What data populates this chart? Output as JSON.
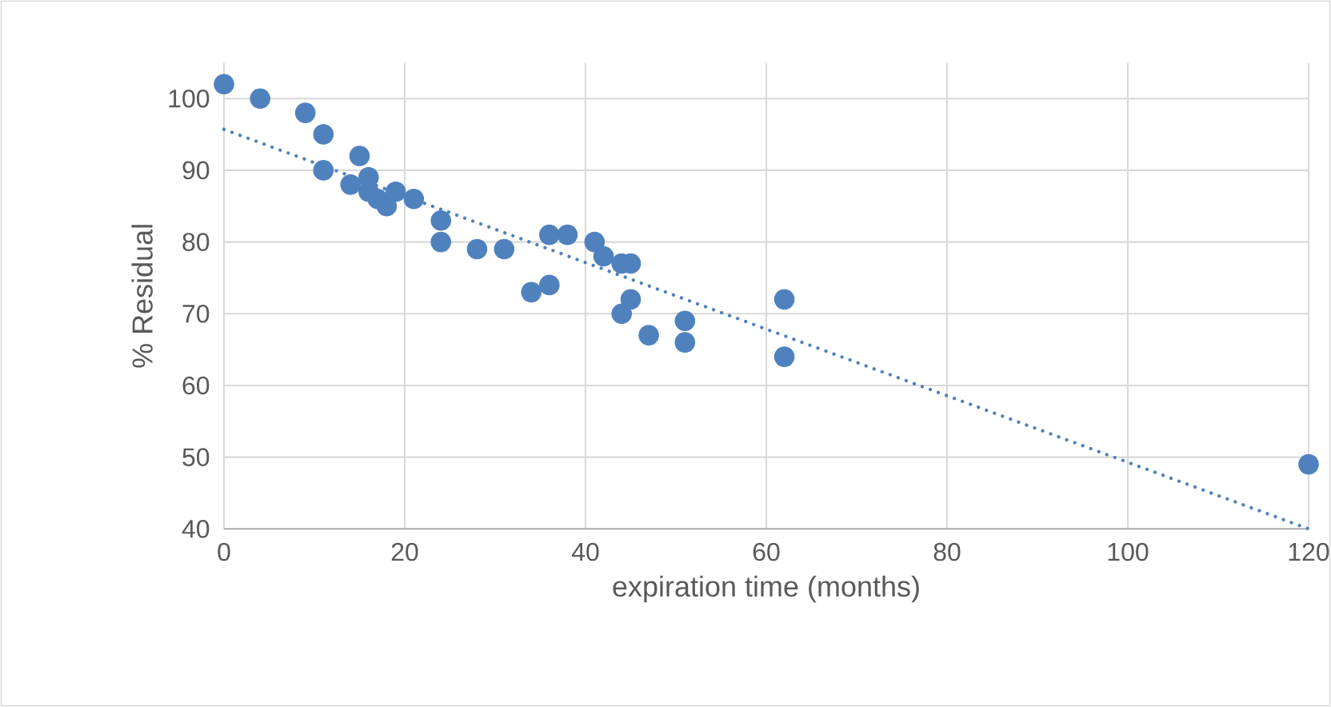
{
  "chart_data": {
    "type": "scatter",
    "xlabel": "expiration time (months)",
    "ylabel": "% Residual",
    "xlim": [
      0,
      120
    ],
    "ylim": [
      40,
      105
    ],
    "xticks": [
      0,
      20,
      40,
      60,
      80,
      100,
      120
    ],
    "yticks": [
      40,
      50,
      60,
      70,
      80,
      90,
      100
    ],
    "grid": true,
    "series": [
      {
        "color": "#4f81bd",
        "marker": "circle",
        "x": [
          0,
          4,
          9,
          11,
          11,
          14,
          15,
          16,
          16,
          17,
          18,
          19,
          21,
          24,
          24,
          28,
          31,
          34,
          36,
          36,
          38,
          41,
          42,
          44,
          45,
          44,
          45,
          47,
          51,
          51,
          62,
          62,
          120
        ],
        "values": [
          102,
          100,
          98,
          95,
          90,
          88,
          92,
          89,
          87,
          86,
          85,
          87,
          86,
          83,
          80,
          79,
          79,
          73,
          74,
          81,
          81,
          80,
          78,
          77,
          77,
          70,
          72,
          67,
          69,
          66,
          72,
          64,
          49
        ]
      },
      {
        "type": "line",
        "color": "#4f81bd",
        "line_style": "dotted",
        "marker": "none",
        "x": [
          0,
          120
        ],
        "values": [
          95.7,
          40
        ]
      }
    ]
  }
}
